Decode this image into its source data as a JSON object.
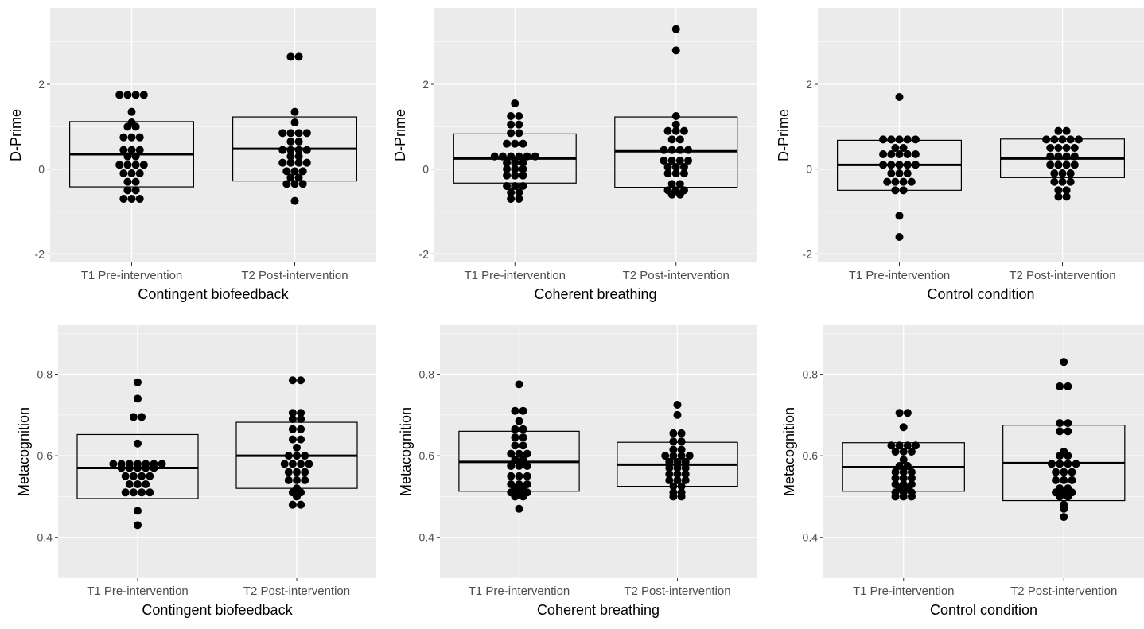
{
  "theme": {
    "panel_bg": "#ebebeb",
    "grid_color": "#ffffff",
    "point_color": "#000000",
    "tick_text_color": "#4d4d4d",
    "label_color": "#000000"
  },
  "chart_data": [
    {
      "type": "boxplot-dotplot",
      "ylabel": "D-Prime",
      "xlabel": "Contingent biofeedback",
      "categories": [
        "T1 Pre-intervention",
        "T2 Post-intervention"
      ],
      "y_ticks": [
        -2,
        0,
        2
      ],
      "ylim": [
        -2.2,
        3.8
      ],
      "grid": true,
      "boxes": [
        {
          "q1": -0.42,
          "median": 0.35,
          "q3": 1.12
        },
        {
          "q1": -0.28,
          "median": 0.48,
          "q3": 1.23
        }
      ],
      "points": [
        [
          1.75,
          1.75,
          1.75,
          1.75,
          1.35,
          1.1,
          1.0,
          1.0,
          0.75,
          0.75,
          0.75,
          0.45,
          0.45,
          0.45,
          0.3,
          0.3,
          0.1,
          0.1,
          0.1,
          0.1,
          -0.1,
          -0.1,
          -0.1,
          -0.3,
          -0.3,
          -0.5,
          -0.5,
          -0.7,
          -0.7,
          -0.7
        ],
        [
          2.65,
          2.65,
          1.35,
          1.1,
          0.85,
          0.85,
          0.85,
          0.85,
          0.65,
          0.65,
          0.45,
          0.45,
          0.45,
          0.45,
          0.3,
          0.3,
          0.15,
          0.15,
          0.15,
          0.15,
          -0.05,
          -0.05,
          -0.05,
          -0.2,
          -0.2,
          -0.35,
          -0.35,
          -0.35,
          -0.75
        ]
      ]
    },
    {
      "type": "boxplot-dotplot",
      "ylabel": "D-Prime",
      "xlabel": "Coherent breathing",
      "categories": [
        "T1 Pre-intervention",
        "T2 Post-intervention"
      ],
      "y_ticks": [
        -2,
        0,
        2
      ],
      "ylim": [
        -2.2,
        3.8
      ],
      "grid": true,
      "boxes": [
        {
          "q1": -0.33,
          "median": 0.25,
          "q3": 0.83
        },
        {
          "q1": -0.43,
          "median": 0.42,
          "q3": 1.23
        }
      ],
      "points": [
        [
          1.55,
          1.25,
          1.25,
          1.05,
          1.05,
          0.85,
          0.85,
          0.6,
          0.6,
          0.6,
          0.3,
          0.3,
          0.3,
          0.3,
          0.3,
          0.3,
          0.15,
          0.15,
          0.15,
          0.0,
          0.0,
          0.0,
          -0.15,
          -0.15,
          -0.15,
          -0.4,
          -0.4,
          -0.4,
          -0.55,
          -0.55,
          -0.7,
          -0.7
        ],
        [
          3.3,
          2.8,
          1.25,
          1.05,
          0.9,
          0.9,
          0.9,
          0.7,
          0.7,
          0.45,
          0.45,
          0.45,
          0.45,
          0.2,
          0.2,
          0.2,
          0.2,
          0.05,
          0.05,
          0.05,
          -0.1,
          -0.1,
          -0.1,
          -0.35,
          -0.35,
          -0.5,
          -0.5,
          -0.5,
          -0.6,
          -0.6
        ]
      ]
    },
    {
      "type": "boxplot-dotplot",
      "ylabel": "D-Prime",
      "xlabel": "Control condition",
      "categories": [
        "T1 Pre-intervention",
        "T2 Post-intervention"
      ],
      "y_ticks": [
        -2,
        0,
        2
      ],
      "ylim": [
        -2.2,
        3.8
      ],
      "grid": true,
      "boxes": [
        {
          "q1": -0.5,
          "median": 0.1,
          "q3": 0.68
        },
        {
          "q1": -0.2,
          "median": 0.25,
          "q3": 0.71
        }
      ],
      "points": [
        [
          1.7,
          0.7,
          0.7,
          0.7,
          0.7,
          0.7,
          0.5,
          0.5,
          0.35,
          0.35,
          0.35,
          0.35,
          0.35,
          0.1,
          0.1,
          0.1,
          0.1,
          0.1,
          -0.1,
          -0.1,
          -0.1,
          -0.3,
          -0.3,
          -0.3,
          -0.3,
          -0.5,
          -0.5,
          -1.1,
          -1.6
        ],
        [
          0.9,
          0.9,
          0.7,
          0.7,
          0.7,
          0.7,
          0.7,
          0.5,
          0.5,
          0.5,
          0.5,
          0.3,
          0.3,
          0.3,
          0.3,
          0.1,
          0.1,
          0.1,
          0.1,
          -0.1,
          -0.1,
          -0.1,
          -0.3,
          -0.3,
          -0.3,
          -0.5,
          -0.5,
          -0.65,
          -0.65
        ]
      ]
    },
    {
      "type": "boxplot-dotplot",
      "ylabel": "Metacognition",
      "xlabel": "Contingent biofeedback",
      "categories": [
        "T1 Pre-intervention",
        "T2 Post-intervention"
      ],
      "y_ticks": [
        0.4,
        0.6,
        0.8
      ],
      "ylim": [
        0.3,
        0.92
      ],
      "grid": true,
      "boxes": [
        {
          "q1": 0.495,
          "median": 0.57,
          "q3": 0.652
        },
        {
          "q1": 0.52,
          "median": 0.6,
          "q3": 0.682
        }
      ],
      "points": [
        [
          0.78,
          0.74,
          0.695,
          0.695,
          0.63,
          0.58,
          0.58,
          0.58,
          0.58,
          0.58,
          0.58,
          0.58,
          0.57,
          0.57,
          0.57,
          0.57,
          0.57,
          0.55,
          0.55,
          0.55,
          0.55,
          0.53,
          0.53,
          0.53,
          0.51,
          0.51,
          0.51,
          0.51,
          0.465,
          0.43
        ],
        [
          0.785,
          0.785,
          0.705,
          0.705,
          0.69,
          0.69,
          0.665,
          0.665,
          0.64,
          0.64,
          0.62,
          0.6,
          0.6,
          0.6,
          0.58,
          0.58,
          0.58,
          0.58,
          0.56,
          0.56,
          0.56,
          0.54,
          0.54,
          0.54,
          0.52,
          0.51,
          0.51,
          0.5,
          0.48,
          0.48
        ]
      ]
    },
    {
      "type": "boxplot-dotplot",
      "ylabel": "Metacognition",
      "xlabel": "Coherent breathing",
      "categories": [
        "T1 Pre-intervention",
        "T2 Post-intervention"
      ],
      "y_ticks": [
        0.4,
        0.6,
        0.8
      ],
      "ylim": [
        0.3,
        0.92
      ],
      "grid": true,
      "boxes": [
        {
          "q1": 0.513,
          "median": 0.585,
          "q3": 0.66
        },
        {
          "q1": 0.525,
          "median": 0.578,
          "q3": 0.633
        }
      ],
      "points": [
        [
          0.775,
          0.71,
          0.71,
          0.685,
          0.665,
          0.665,
          0.645,
          0.645,
          0.625,
          0.625,
          0.605,
          0.605,
          0.605,
          0.59,
          0.59,
          0.575,
          0.575,
          0.575,
          0.55,
          0.55,
          0.55,
          0.53,
          0.53,
          0.53,
          0.52,
          0.52,
          0.51,
          0.51,
          0.51,
          0.5,
          0.5,
          0.47
        ],
        [
          0.725,
          0.7,
          0.655,
          0.655,
          0.635,
          0.635,
          0.615,
          0.615,
          0.6,
          0.6,
          0.6,
          0.6,
          0.585,
          0.585,
          0.585,
          0.57,
          0.57,
          0.57,
          0.555,
          0.555,
          0.555,
          0.54,
          0.54,
          0.54,
          0.525,
          0.525,
          0.51,
          0.51,
          0.5,
          0.5
        ]
      ]
    },
    {
      "type": "boxplot-dotplot",
      "ylabel": "Metacognition",
      "xlabel": "Control condition",
      "categories": [
        "T1 Pre-intervention",
        "T2 Post-intervention"
      ],
      "y_ticks": [
        0.4,
        0.6,
        0.8
      ],
      "ylim": [
        0.3,
        0.92
      ],
      "grid": true,
      "boxes": [
        {
          "q1": 0.513,
          "median": 0.572,
          "q3": 0.632
        },
        {
          "q1": 0.49,
          "median": 0.582,
          "q3": 0.675
        }
      ],
      "points": [
        [
          0.705,
          0.705,
          0.67,
          0.625,
          0.625,
          0.625,
          0.625,
          0.61,
          0.61,
          0.61,
          0.59,
          0.575,
          0.575,
          0.56,
          0.56,
          0.56,
          0.545,
          0.545,
          0.545,
          0.53,
          0.53,
          0.53,
          0.52,
          0.52,
          0.51,
          0.51,
          0.51,
          0.5,
          0.5,
          0.5
        ],
        [
          0.83,
          0.77,
          0.77,
          0.68,
          0.68,
          0.66,
          0.66,
          0.61,
          0.6,
          0.6,
          0.58,
          0.58,
          0.58,
          0.58,
          0.56,
          0.56,
          0.56,
          0.54,
          0.54,
          0.54,
          0.52,
          0.52,
          0.51,
          0.51,
          0.51,
          0.5,
          0.5,
          0.48,
          0.47,
          0.45
        ]
      ]
    }
  ]
}
